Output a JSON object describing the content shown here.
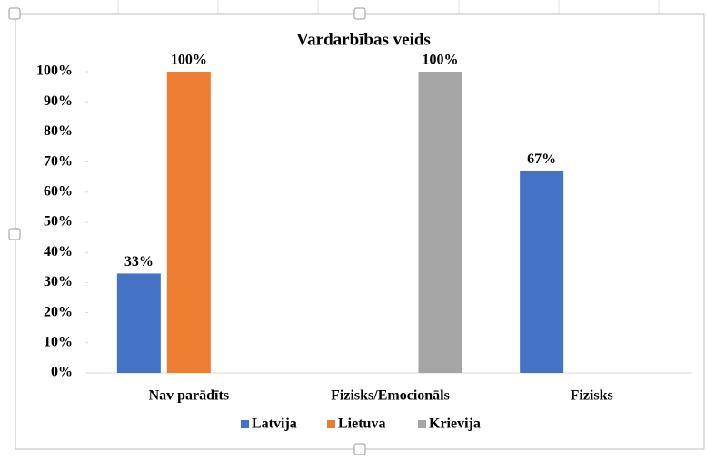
{
  "chart_data": {
    "type": "bar",
    "title": "Vardarbības veids",
    "categories": [
      "Nav parādīts",
      "Fizisks/Emocionāls",
      "Fizisks"
    ],
    "series": [
      {
        "name": "Latvija",
        "color": "#4472c4",
        "values": [
          33,
          null,
          67
        ],
        "value_labels": [
          "33%",
          null,
          "67%"
        ]
      },
      {
        "name": "Lietuva",
        "color": "#ed7d31",
        "values": [
          100,
          null,
          null
        ],
        "value_labels": [
          "100%",
          null,
          null
        ]
      },
      {
        "name": "Krievija",
        "color": "#a5a5a5",
        "values": [
          null,
          100,
          null
        ],
        "value_labels": [
          null,
          "100%",
          null
        ]
      }
    ],
    "ylim": [
      0,
      100
    ],
    "yticks": [
      {
        "value": 0,
        "label": "0%"
      },
      {
        "value": 10,
        "label": "10%"
      },
      {
        "value": 20,
        "label": "20%"
      },
      {
        "value": 30,
        "label": "30%"
      },
      {
        "value": 40,
        "label": "40%"
      },
      {
        "value": 50,
        "label": "50%"
      },
      {
        "value": 60,
        "label": "60%"
      },
      {
        "value": 70,
        "label": "70%"
      },
      {
        "value": 80,
        "label": "80%"
      },
      {
        "value": 90,
        "label": "90%"
      },
      {
        "value": 100,
        "label": "100%"
      }
    ],
    "grid": false,
    "legend": "bottom"
  }
}
